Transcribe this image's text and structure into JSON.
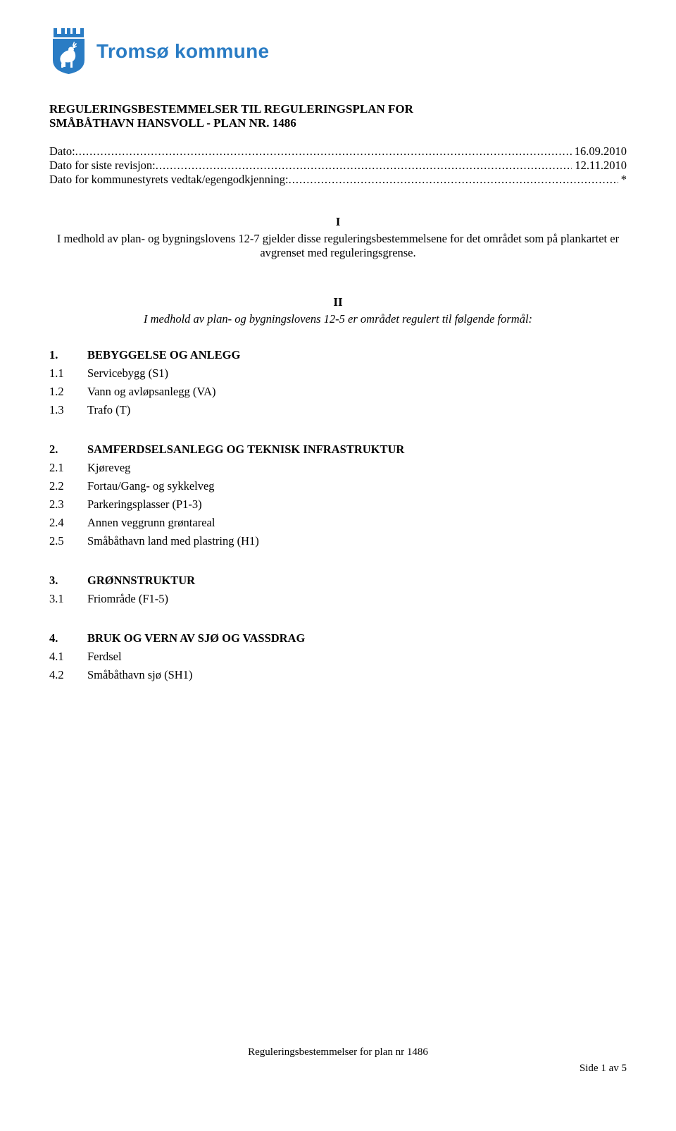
{
  "header": {
    "org_name": "Tromsø kommune",
    "crest_colors": {
      "shield": "#2a7cc4",
      "border": "#2a7cc4",
      "reindeer": "#ffffff",
      "crown": "#2a7cc4"
    }
  },
  "title": {
    "line1": "REGULERINGSBESTEMMELSER TIL REGULERINGSPLAN FOR",
    "line2": "SMÅBÅTHAVN HANSVOLL - PLAN NR. 1486"
  },
  "dates": [
    {
      "label": "Dato:",
      "value": " 16.09.2010"
    },
    {
      "label": "Dato for siste revisjon:",
      "value": " 12.11.2010"
    },
    {
      "label": "Dato for kommunestyrets vedtak/egengodkjenning:",
      "value": " *"
    }
  ],
  "section_I": {
    "roman": "I",
    "text": "I medhold av plan- og bygningslovens 12-7 gjelder disse reguleringsbestemmelsene for det området som på plankartet er avgrenset med reguleringsgrense."
  },
  "section_II": {
    "roman": "II",
    "text": "I medhold av plan- og bygningslovens 12-5 er området regulert til følgende formål:"
  },
  "sections": [
    {
      "num": "1.",
      "heading": "BEBYGGELSE OG ANLEGG",
      "items": [
        {
          "num": "1.1",
          "label": "Servicebygg (S1)"
        },
        {
          "num": "1.2",
          "label": "Vann og avløpsanlegg (VA)"
        },
        {
          "num": "1.3",
          "label": "Trafo (T)"
        }
      ]
    },
    {
      "num": "2.",
      "heading": "SAMFERDSELSANLEGG OG TEKNISK INFRASTRUKTUR",
      "items": [
        {
          "num": "2.1",
          "label": "Kjøreveg"
        },
        {
          "num": "2.2",
          "label": "Fortau/Gang- og sykkelveg"
        },
        {
          "num": "2.3",
          "label": "Parkeringsplasser (P1-3)"
        },
        {
          "num": "2.4",
          "label": "Annen veggrunn grøntareal"
        },
        {
          "num": "2.5",
          "label": "Småbåthavn land med plastring (H1)"
        }
      ]
    },
    {
      "num": "3.",
      "heading": "GRØNNSTRUKTUR",
      "items": [
        {
          "num": "3.1",
          "label": "Friområde (F1-5)"
        }
      ]
    },
    {
      "num": "4.",
      "heading": "BRUK OG VERN AV SJØ OG VASSDRAG",
      "items": [
        {
          "num": "4.1",
          "label": "Ferdsel"
        },
        {
          "num": "4.2",
          "label": "Småbåthavn sjø (SH1)"
        }
      ]
    }
  ],
  "footer": {
    "center": "Reguleringsbestemmelser for plan nr 1486",
    "right": "Side 1 av 5"
  }
}
